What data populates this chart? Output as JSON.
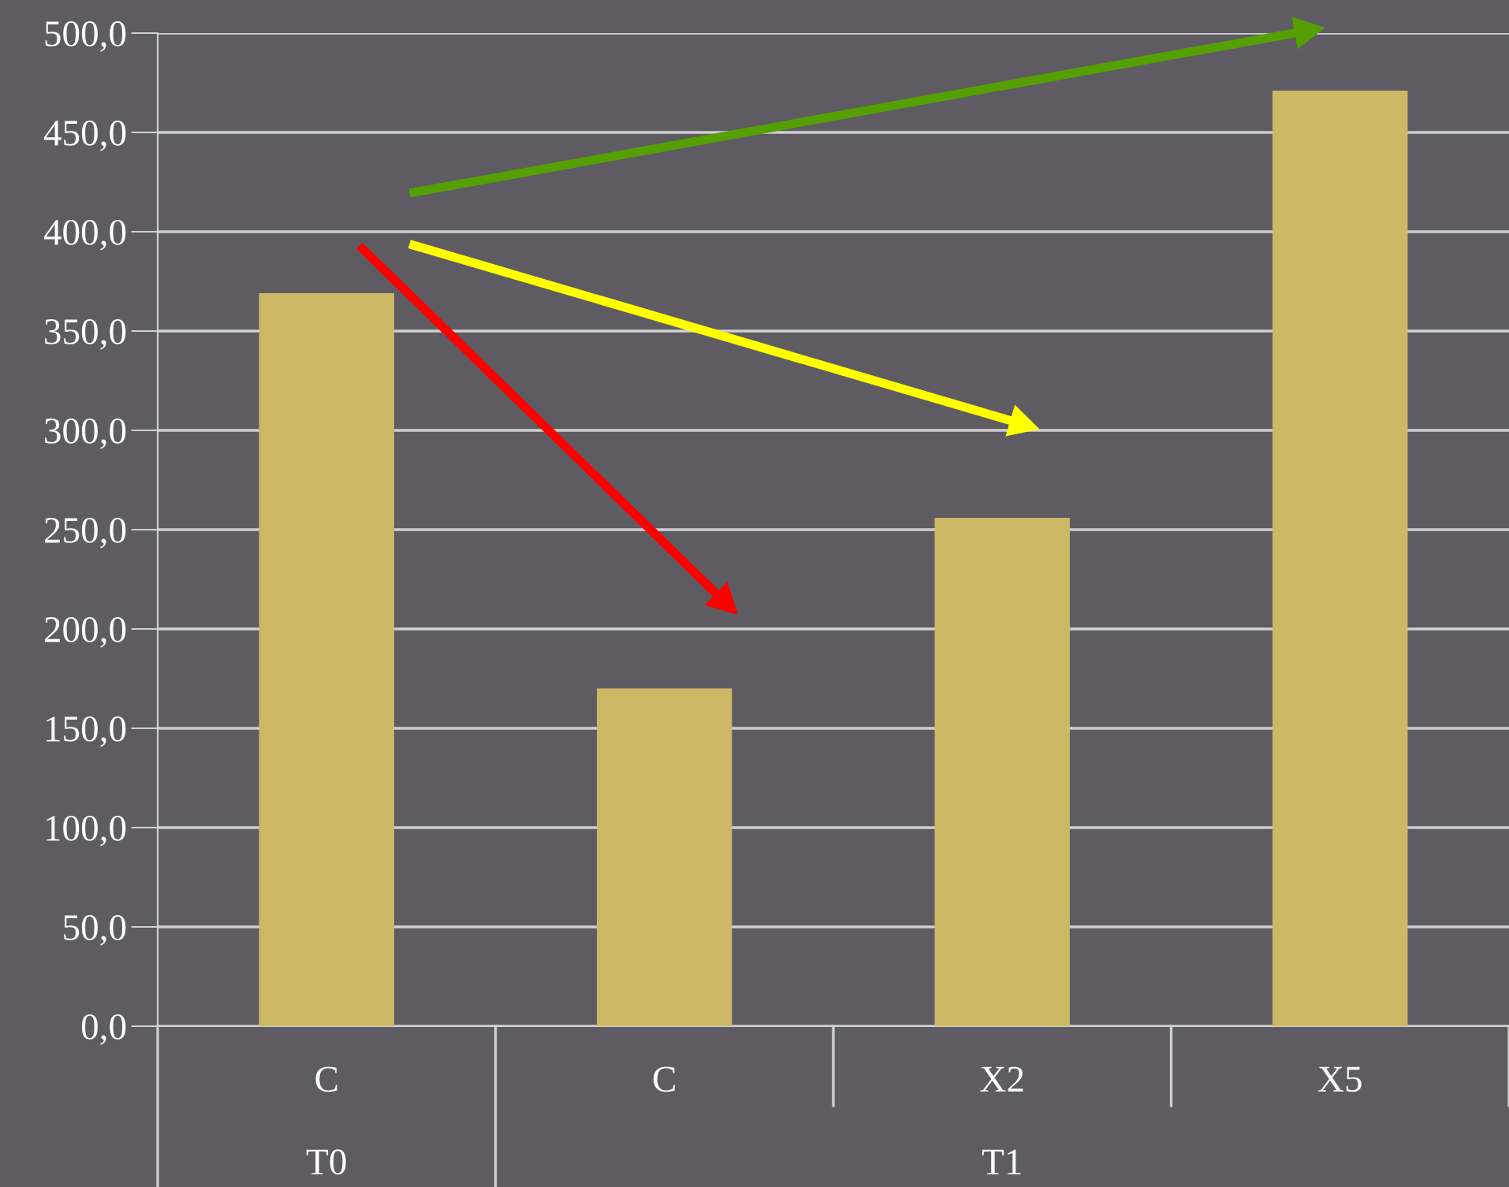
{
  "chart_data": {
    "type": "bar",
    "categories": [
      "C",
      "C",
      "X2",
      "X5"
    ],
    "values": [
      369,
      170,
      256,
      471
    ],
    "color": "#cdb866",
    "ylim": [
      0,
      500
    ],
    "yticks": [
      {
        "value": 0,
        "label": "0,0"
      },
      {
        "value": 50,
        "label": "50,0"
      },
      {
        "value": 100,
        "label": "100,0"
      },
      {
        "value": 150,
        "label": "150,0"
      },
      {
        "value": 200,
        "label": "200,0"
      },
      {
        "value": 250,
        "label": "250,0"
      },
      {
        "value": 300,
        "label": "300,0"
      },
      {
        "value": 350,
        "label": "350,0"
      },
      {
        "value": 400,
        "label": "400,0"
      },
      {
        "value": 450,
        "label": "450,0"
      },
      {
        "value": 500,
        "label": "500,0"
      }
    ],
    "grid": "y",
    "annotations": [
      "T0",
      "T1"
    ]
  }
}
